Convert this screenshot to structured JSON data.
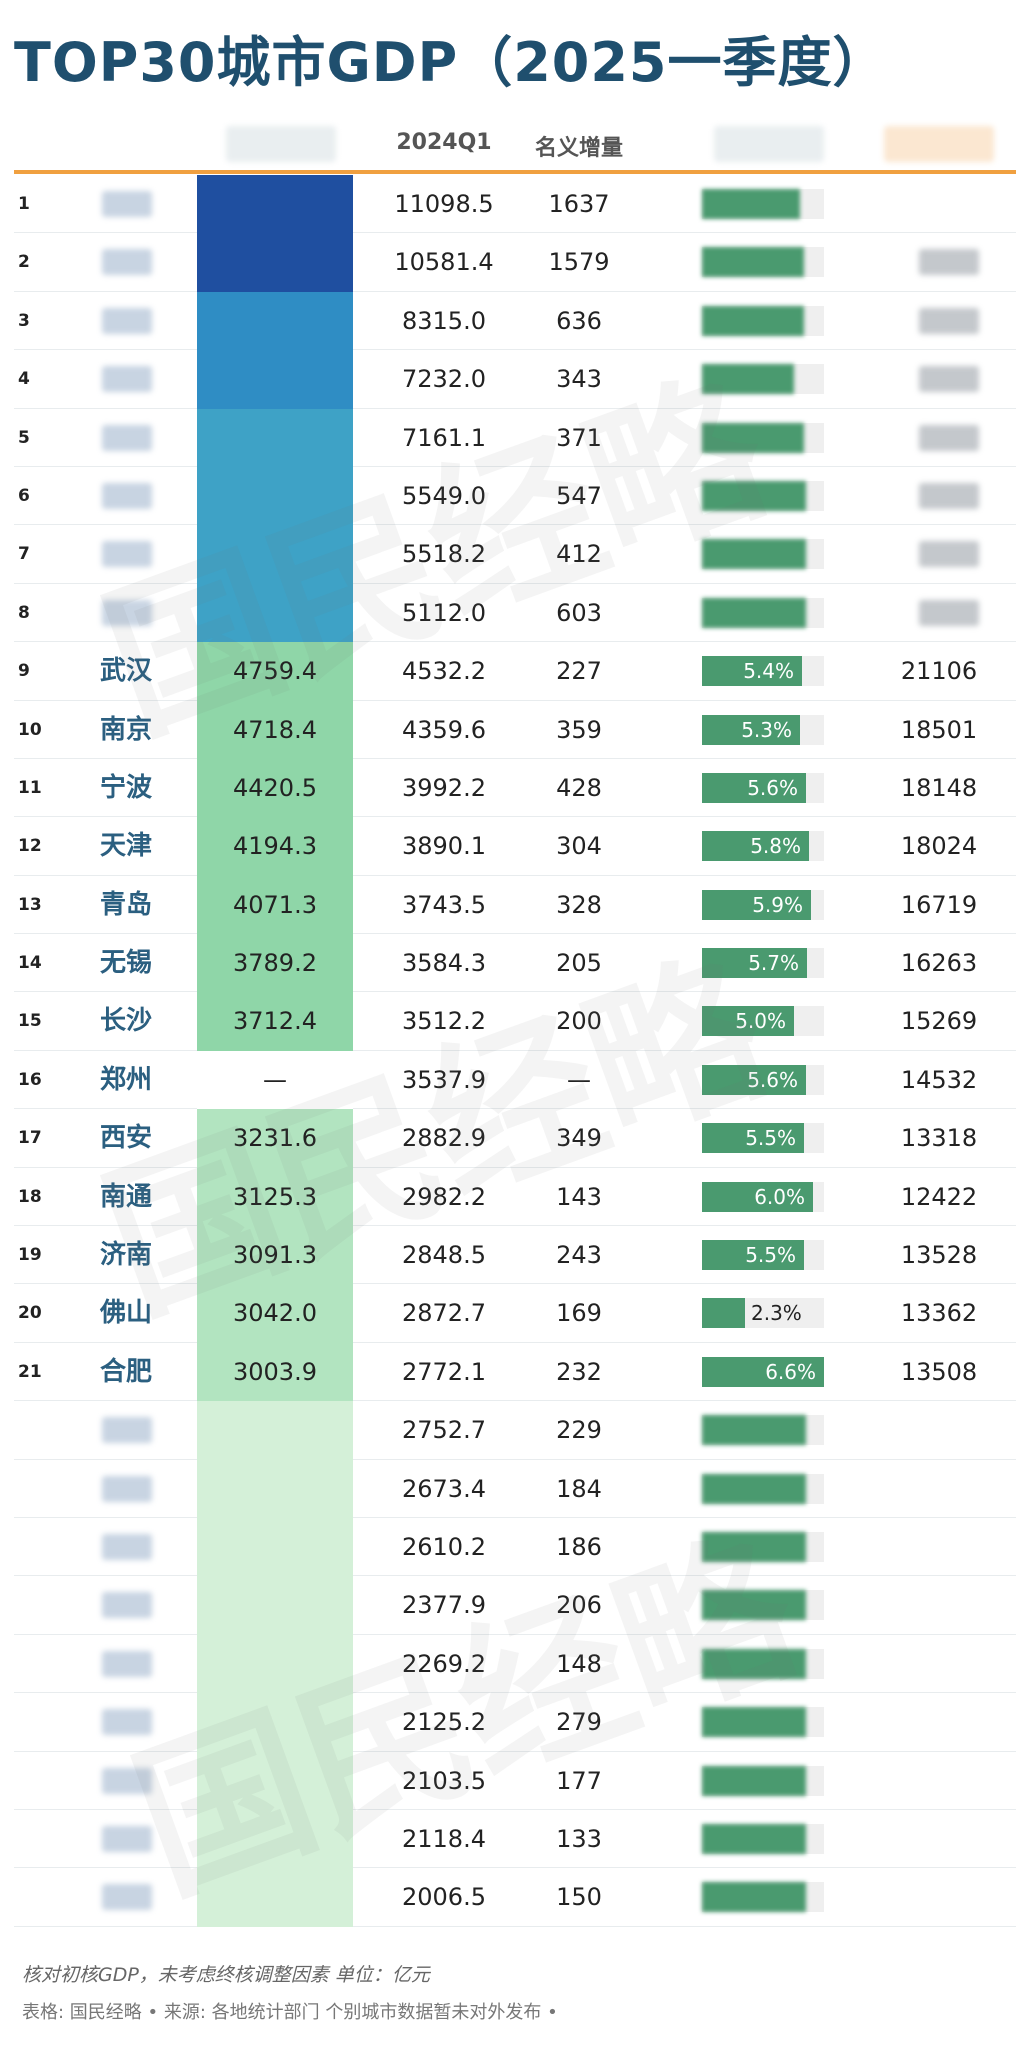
{
  "title": "TOP30城市GDP（2025一季度）",
  "headers": {
    "q1": "2024Q1",
    "increase": "名义增量"
  },
  "footnote1": "核对初核GDP，未考虑终核调整因素 单位：亿元",
  "footnote2": "表格:   国民经略 • 来源: 各地统计部门 个别城市数据暂未对外发布 •",
  "watermark": "国民经略",
  "colors": {
    "title": "#1f4f6e",
    "bar": "#4a9a6f",
    "header_line": "#f0a040"
  },
  "chart_data": {
    "type": "table",
    "columns": [
      "rank",
      "city",
      "gdp_2025q1",
      "gdp_2024q1",
      "nominal_increase",
      "growth",
      "extra"
    ],
    "rows": [
      {
        "rank": "1",
        "city": "",
        "gdp": "",
        "q1": "11098.5",
        "inc": "1637",
        "growth": "",
        "growth_value": 5.3,
        "per": ""
      },
      {
        "rank": "2",
        "city": "",
        "gdp": "",
        "q1": "10581.4",
        "inc": "1579",
        "growth": "",
        "growth_value": 5.5,
        "per": ""
      },
      {
        "rank": "3",
        "city": "",
        "gdp": "",
        "q1": "8315.0",
        "inc": "636",
        "growth": "",
        "growth_value": 5.5,
        "per": ""
      },
      {
        "rank": "4",
        "city": "",
        "gdp": "",
        "q1": "7232.0",
        "inc": "343",
        "growth": "",
        "growth_value": 5.0,
        "per": ""
      },
      {
        "rank": "5",
        "city": "",
        "gdp": "",
        "q1": "7161.1",
        "inc": "371",
        "growth": "",
        "growth_value": 5.5,
        "per": ""
      },
      {
        "rank": "6",
        "city": "",
        "gdp": "",
        "q1": "5549.0",
        "inc": "547",
        "growth": "",
        "growth_value": 5.6,
        "per": ""
      },
      {
        "rank": "7",
        "city": "",
        "gdp": "",
        "q1": "5518.2",
        "inc": "412",
        "growth": "",
        "growth_value": 5.6,
        "per": ""
      },
      {
        "rank": "8",
        "city": "",
        "gdp": "",
        "q1": "5112.0",
        "inc": "603",
        "growth": "",
        "growth_value": 5.6,
        "per": ""
      },
      {
        "rank": "9",
        "city": "武汉",
        "gdp": "4759.4",
        "q1": "4532.2",
        "inc": "227",
        "growth": "5.4%",
        "growth_value": 5.4,
        "per": "21106"
      },
      {
        "rank": "10",
        "city": "南京",
        "gdp": "4718.4",
        "q1": "4359.6",
        "inc": "359",
        "growth": "5.3%",
        "growth_value": 5.3,
        "per": "18501"
      },
      {
        "rank": "11",
        "city": "宁波",
        "gdp": "4420.5",
        "q1": "3992.2",
        "inc": "428",
        "growth": "5.6%",
        "growth_value": 5.6,
        "per": "18148"
      },
      {
        "rank": "12",
        "city": "天津",
        "gdp": "4194.3",
        "q1": "3890.1",
        "inc": "304",
        "growth": "5.8%",
        "growth_value": 5.8,
        "per": "18024"
      },
      {
        "rank": "13",
        "city": "青岛",
        "gdp": "4071.3",
        "q1": "3743.5",
        "inc": "328",
        "growth": "5.9%",
        "growth_value": 5.9,
        "per": "16719"
      },
      {
        "rank": "14",
        "city": "无锡",
        "gdp": "3789.2",
        "q1": "3584.3",
        "inc": "205",
        "growth": "5.7%",
        "growth_value": 5.7,
        "per": "16263"
      },
      {
        "rank": "15",
        "city": "长沙",
        "gdp": "3712.4",
        "q1": "3512.2",
        "inc": "200",
        "growth": "5.0%",
        "growth_value": 5.0,
        "per": "15269"
      },
      {
        "rank": "16",
        "city": "郑州",
        "gdp": "—",
        "q1": "3537.9",
        "inc": "—",
        "growth": "5.6%",
        "growth_value": 5.6,
        "per": "14532"
      },
      {
        "rank": "17",
        "city": "西安",
        "gdp": "3231.6",
        "q1": "2882.9",
        "inc": "349",
        "growth": "5.5%",
        "growth_value": 5.5,
        "per": "13318"
      },
      {
        "rank": "18",
        "city": "南通",
        "gdp": "3125.3",
        "q1": "2982.2",
        "inc": "143",
        "growth": "6.0%",
        "growth_value": 6.0,
        "per": "12422"
      },
      {
        "rank": "19",
        "city": "济南",
        "gdp": "3091.3",
        "q1": "2848.5",
        "inc": "243",
        "growth": "5.5%",
        "growth_value": 5.5,
        "per": "13528"
      },
      {
        "rank": "20",
        "city": "佛山",
        "gdp": "3042.0",
        "q1": "2872.7",
        "inc": "169",
        "growth": "2.3%",
        "growth_value": 2.3,
        "per": "13362"
      },
      {
        "rank": "21",
        "city": "合肥",
        "gdp": "3003.9",
        "q1": "2772.1",
        "inc": "232",
        "growth": "6.6%",
        "growth_value": 6.6,
        "per": "13508"
      },
      {
        "rank": "",
        "city": "",
        "gdp": "",
        "q1": "2752.7",
        "inc": "229",
        "growth": "",
        "growth_value": 5.6,
        "per": ""
      },
      {
        "rank": "",
        "city": "",
        "gdp": "",
        "q1": "2673.4",
        "inc": "184",
        "growth": "",
        "growth_value": 5.6,
        "per": ""
      },
      {
        "rank": "",
        "city": "",
        "gdp": "",
        "q1": "2610.2",
        "inc": "186",
        "growth": "",
        "growth_value": 5.6,
        "per": ""
      },
      {
        "rank": "",
        "city": "",
        "gdp": "",
        "q1": "2377.9",
        "inc": "206",
        "growth": "",
        "growth_value": 5.6,
        "per": ""
      },
      {
        "rank": "",
        "city": "",
        "gdp": "",
        "q1": "2269.2",
        "inc": "148",
        "growth": "",
        "growth_value": 5.6,
        "per": ""
      },
      {
        "rank": "",
        "city": "",
        "gdp": "",
        "q1": "2125.2",
        "inc": "279",
        "growth": "",
        "growth_value": 5.6,
        "per": ""
      },
      {
        "rank": "",
        "city": "",
        "gdp": "",
        "q1": "2103.5",
        "inc": "177",
        "growth": "",
        "growth_value": 5.6,
        "per": ""
      },
      {
        "rank": "",
        "city": "",
        "gdp": "",
        "q1": "2118.4",
        "inc": "133",
        "growth": "",
        "growth_value": 5.6,
        "per": ""
      },
      {
        "rank": "",
        "city": "",
        "gdp": "",
        "q1": "2006.5",
        "inc": "150",
        "growth": "",
        "growth_value": 5.6,
        "per": ""
      }
    ],
    "growth_max": 6.6
  }
}
